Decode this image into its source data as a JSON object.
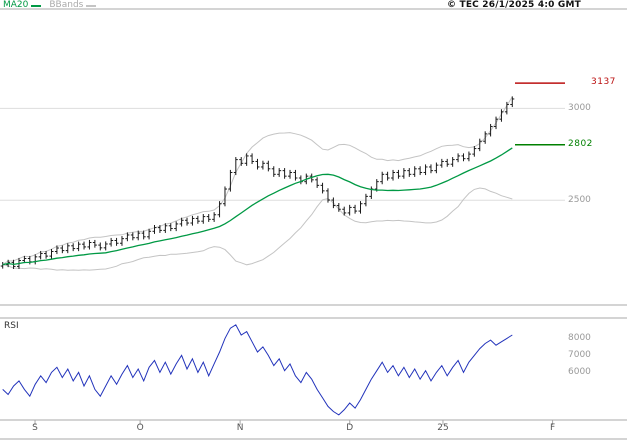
{
  "header": {
    "ma20_label": "MA20",
    "bbands_label": "BBands",
    "copyright": "© TEC 26/1/2025 4:0 GMT"
  },
  "panels": {
    "rsi_label": "RSI"
  },
  "colors": {
    "ma20": "#009944",
    "bbands": "#c4c4c4",
    "bbands_text": "#aaaaaa",
    "candle": "#1a1a1a",
    "rsi": "#2233bb",
    "grid": "#dddddd",
    "border": "#aaaaaa",
    "tick_text": "#999999",
    "resistance": "#bb1111",
    "support": "#008000"
  },
  "levels": [
    {
      "name": "resistance",
      "label": "3137",
      "value": 3137,
      "color": "#bb1111"
    },
    {
      "name": "support",
      "label": "2802",
      "value": 2802,
      "color": "#008000"
    }
  ],
  "price_axis": {
    "ticks": [
      {
        "label": "3000",
        "value": 3000
      },
      {
        "label": "2500",
        "value": 2500
      }
    ]
  },
  "rsi_axis": {
    "ticks": [
      {
        "label": "8000",
        "value": 80
      },
      {
        "label": "7000",
        "value": 70
      },
      {
        "label": "6000",
        "value": 60
      }
    ]
  },
  "x_axis": {
    "labels": [
      "S",
      "O",
      "N",
      "D",
      "25",
      "F"
    ],
    "positions": [
      0.062,
      0.248,
      0.425,
      0.619,
      0.784,
      0.978
    ]
  },
  "chart_data": {
    "type": "ohlc",
    "title": "",
    "panels": [
      "price",
      "rsi"
    ],
    "overlays": [
      "MA20",
      "Bollinger Bands"
    ],
    "x_month_labels": [
      "S",
      "O",
      "N",
      "D",
      "25",
      "F"
    ],
    "price_ylim": [
      1930,
      3535
    ],
    "rsi_ylim": [
      32,
      92
    ],
    "horizontal_levels": [
      3137,
      2802
    ],
    "ma_window": 20,
    "bb_mult": 2.2,
    "bar_range": 14,
    "closes": [
      2150,
      2162,
      2140,
      2172,
      2183,
      2165,
      2192,
      2210,
      2196,
      2221,
      2240,
      2226,
      2252,
      2237,
      2261,
      2246,
      2270,
      2256,
      2241,
      2262,
      2281,
      2266,
      2291,
      2311,
      2296,
      2321,
      2301,
      2331,
      2351,
      2336,
      2361,
      2346,
      2371,
      2391,
      2376,
      2401,
      2386,
      2411,
      2396,
      2421,
      2481,
      2561,
      2651,
      2721,
      2701,
      2741,
      2711,
      2681,
      2701,
      2671,
      2641,
      2661,
      2631,
      2651,
      2621,
      2601,
      2631,
      2611,
      2581,
      2551,
      2501,
      2471,
      2451,
      2431,
      2461,
      2441,
      2481,
      2521,
      2561,
      2601,
      2641,
      2621,
      2651,
      2631,
      2661,
      2641,
      2671,
      2651,
      2681,
      2661,
      2691,
      2711,
      2696,
      2721,
      2741,
      2726,
      2751,
      2781,
      2821,
      2861,
      2901,
      2941,
      2981,
      3021,
      3051
    ],
    "rsi": [
      50,
      47,
      52,
      55,
      50,
      46,
      53,
      58,
      54,
      60,
      63,
      57,
      62,
      55,
      60,
      52,
      58,
      50,
      46,
      52,
      58,
      53,
      59,
      64,
      57,
      62,
      55,
      63,
      67,
      60,
      66,
      59,
      65,
      70,
      62,
      68,
      60,
      66,
      58,
      65,
      72,
      80,
      86,
      88,
      82,
      84,
      78,
      72,
      75,
      70,
      64,
      68,
      61,
      65,
      58,
      54,
      60,
      56,
      50,
      45,
      40,
      37,
      35,
      38,
      42,
      39,
      44,
      50,
      56,
      61,
      66,
      60,
      64,
      58,
      63,
      57,
      62,
      56,
      61,
      55,
      60,
      64,
      58,
      63,
      67,
      60,
      66,
      70,
      74,
      77,
      79,
      76,
      78,
      80,
      82
    ]
  }
}
